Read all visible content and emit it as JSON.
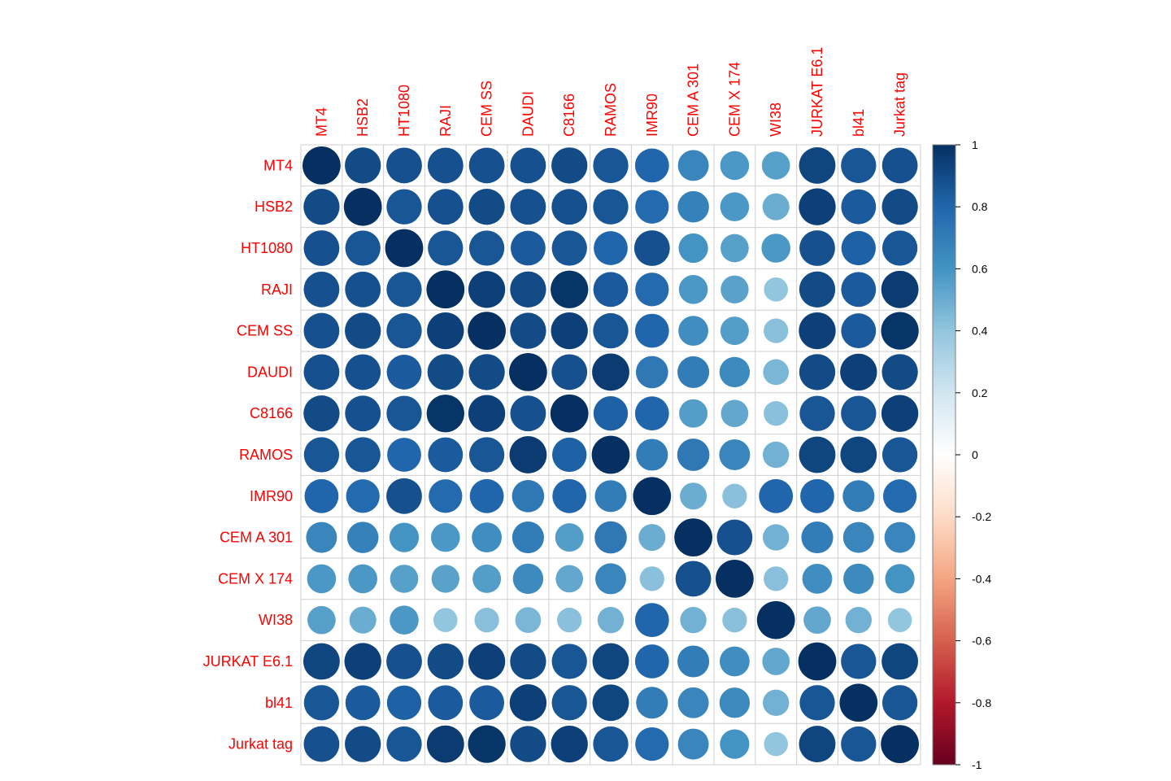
{
  "chart_data": {
    "type": "heatmap",
    "subtype": "correlation-circles",
    "title": "",
    "variables": [
      "MT4",
      "HSB2",
      "HT1080",
      "RAJI",
      "CEM SS",
      "DAUDI",
      "C8166",
      "RAMOS",
      "IMR90",
      "CEM A 301",
      "CEM X 174",
      "WI38",
      "JURKAT E6.1",
      "bl41",
      "Jurkat tag"
    ],
    "matrix": [
      [
        1.0,
        0.9,
        0.88,
        0.88,
        0.88,
        0.88,
        0.9,
        0.86,
        0.8,
        0.66,
        0.58,
        0.55,
        0.92,
        0.86,
        0.88
      ],
      [
        0.9,
        1.0,
        0.86,
        0.88,
        0.9,
        0.88,
        0.88,
        0.86,
        0.78,
        0.68,
        0.58,
        0.5,
        0.94,
        0.84,
        0.9
      ],
      [
        0.88,
        0.86,
        1.0,
        0.86,
        0.86,
        0.84,
        0.86,
        0.8,
        0.88,
        0.6,
        0.55,
        0.58,
        0.88,
        0.82,
        0.86
      ],
      [
        0.88,
        0.88,
        0.86,
        1.0,
        0.94,
        0.9,
        0.98,
        0.84,
        0.78,
        0.58,
        0.54,
        0.4,
        0.9,
        0.84,
        0.96
      ],
      [
        0.88,
        0.9,
        0.86,
        0.94,
        1.0,
        0.9,
        0.94,
        0.86,
        0.8,
        0.62,
        0.56,
        0.42,
        0.94,
        0.84,
        0.98
      ],
      [
        0.88,
        0.88,
        0.84,
        0.9,
        0.9,
        1.0,
        0.88,
        0.96,
        0.72,
        0.7,
        0.64,
        0.46,
        0.9,
        0.94,
        0.9
      ],
      [
        0.9,
        0.88,
        0.86,
        0.98,
        0.94,
        0.88,
        1.0,
        0.82,
        0.8,
        0.56,
        0.52,
        0.42,
        0.86,
        0.86,
        0.94
      ],
      [
        0.86,
        0.86,
        0.8,
        0.84,
        0.86,
        0.96,
        0.82,
        1.0,
        0.7,
        0.72,
        0.66,
        0.48,
        0.92,
        0.92,
        0.86
      ],
      [
        0.8,
        0.78,
        0.88,
        0.78,
        0.8,
        0.72,
        0.8,
        0.7,
        1.0,
        0.5,
        0.42,
        0.8,
        0.8,
        0.7,
        0.78
      ],
      [
        0.66,
        0.68,
        0.6,
        0.58,
        0.62,
        0.7,
        0.56,
        0.72,
        0.5,
        1.0,
        0.88,
        0.48,
        0.7,
        0.66,
        0.66
      ],
      [
        0.58,
        0.58,
        0.55,
        0.54,
        0.56,
        0.64,
        0.52,
        0.66,
        0.42,
        0.88,
        1.0,
        0.42,
        0.62,
        0.64,
        0.6
      ],
      [
        0.55,
        0.5,
        0.58,
        0.4,
        0.42,
        0.46,
        0.42,
        0.48,
        0.8,
        0.48,
        0.42,
        1.0,
        0.52,
        0.48,
        0.4
      ],
      [
        0.92,
        0.94,
        0.88,
        0.9,
        0.94,
        0.9,
        0.86,
        0.92,
        0.8,
        0.7,
        0.62,
        0.52,
        1.0,
        0.86,
        0.92
      ],
      [
        0.86,
        0.84,
        0.82,
        0.84,
        0.84,
        0.94,
        0.86,
        0.92,
        0.7,
        0.66,
        0.64,
        0.48,
        0.86,
        1.0,
        0.86
      ],
      [
        0.88,
        0.9,
        0.86,
        0.96,
        0.98,
        0.9,
        0.94,
        0.86,
        0.78,
        0.66,
        0.6,
        0.4,
        0.92,
        0.86,
        1.0
      ]
    ],
    "colorbar": {
      "range": [
        -1,
        1
      ],
      "ticks": [
        1,
        0.8,
        0.6,
        0.4,
        0.2,
        0,
        -0.2,
        -0.4,
        -0.6,
        -0.8,
        -1
      ],
      "tick_labels": [
        "1",
        "0.8",
        "0.6",
        "0.4",
        "0.2",
        "0",
        "-0.2",
        "-0.4",
        "-0.6",
        "-0.8",
        "-1"
      ]
    },
    "label_color": "#ff0000",
    "palette": [
      "#67001F",
      "#B2182B",
      "#D6604D",
      "#F4A582",
      "#FDDBC7",
      "#FFFFFF",
      "#D1E5F0",
      "#92C5DE",
      "#4393C3",
      "#2166AC",
      "#053061"
    ]
  }
}
